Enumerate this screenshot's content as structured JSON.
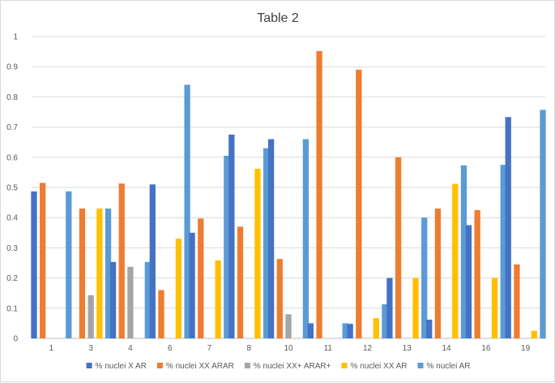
{
  "chart_data": {
    "type": "bar",
    "title": "Table 2",
    "xlabel": "",
    "ylabel": "",
    "ylim": [
      0,
      1
    ],
    "yticks": [
      "0",
      "0.1",
      "0.2",
      "0.3",
      "0.4",
      "0.5",
      "0.6",
      "0.7",
      "0.8",
      "0.9",
      "1"
    ],
    "grid": true,
    "legend_position": "bottom",
    "categories": [
      "1",
      "3",
      "4",
      "6",
      "7",
      "8",
      "10",
      "11",
      "12",
      "13",
      "14",
      "16",
      "19"
    ],
    "series": [
      {
        "name": "% nuclei X AR",
        "color": "#4472C4",
        "values": [
          0.487,
          null,
          0.253,
          0.51,
          0.35,
          0.675,
          0.66,
          0.05,
          0.048,
          0.2,
          0.062,
          0.375,
          0.733
        ]
      },
      {
        "name": "% nuclei XX ARAR",
        "color": "#ED7D31",
        "values": [
          0.515,
          0.43,
          0.513,
          0.16,
          0.397,
          0.37,
          0.263,
          0.952,
          0.89,
          0.6,
          0.43,
          0.425,
          0.245
        ]
      },
      {
        "name": "% nuclei XX+ ARAR+",
        "color": "#A5A5A5",
        "values": [
          null,
          0.143,
          0.237,
          null,
          null,
          null,
          0.08,
          null,
          null,
          null,
          null,
          null,
          null
        ]
      },
      {
        "name": "% nuclei XX AR",
        "color": "#FFC000",
        "values": [
          null,
          0.43,
          null,
          0.33,
          0.258,
          0.562,
          null,
          null,
          0.067,
          0.2,
          0.512,
          0.2,
          0.025
        ]
      },
      {
        "name": "% nuclei AR",
        "color": "#5B9BD5",
        "values": [
          0.487,
          0.43,
          0.253,
          0.84,
          0.605,
          0.63,
          0.66,
          0.05,
          0.113,
          0.4,
          0.573,
          0.575,
          0.757
        ]
      }
    ]
  }
}
